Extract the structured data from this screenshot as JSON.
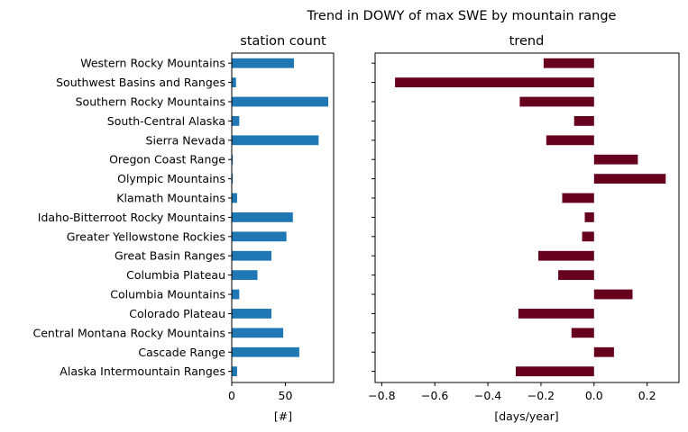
{
  "figure": {
    "suptitle": "Trend in DOWY of max SWE by mountain range"
  },
  "chart_data": [
    {
      "type": "bar",
      "orientation": "horizontal",
      "title": "station count",
      "xlabel": "[#]",
      "ylabel": "",
      "color": "#1f77b4",
      "xlim": [
        0,
        95
      ],
      "xticks": [
        0,
        50
      ],
      "grid": false,
      "categories": [
        "Western Rocky Mountains",
        "Southwest Basins and Ranges",
        "Southern Rocky Mountains",
        "South-Central Alaska",
        "Sierra Nevada",
        "Oregon Coast Range",
        "Olympic Mountains",
        "Klamath Mountains",
        "Idaho-Bitterroot Rocky Mountains",
        "Greater Yellowstone Rockies",
        "Great Basin Ranges",
        "Columbia Plateau",
        "Columbia Mountains",
        "Colorado Plateau",
        "Central Montana Rocky Mountains",
        "Cascade Range",
        "Alaska Intermountain Ranges"
      ],
      "values": [
        58,
        4,
        90,
        7,
        81,
        1,
        1,
        5,
        57,
        51,
        37,
        24,
        7,
        37,
        48,
        63,
        5
      ]
    },
    {
      "type": "bar",
      "orientation": "horizontal",
      "title": "trend",
      "xlabel": "[days/year]",
      "ylabel": "",
      "color": "#67001f",
      "xlim": [
        -0.825,
        0.32
      ],
      "xticks": [
        -0.8,
        -0.6,
        -0.4,
        -0.2,
        0.0,
        0.2
      ],
      "xticklabels": [
        "−0.8",
        "−0.6",
        "−0.4",
        "−0.2",
        "0.0",
        "0.2"
      ],
      "grid": false,
      "categories": [
        "Western Rocky Mountains",
        "Southwest Basins and Ranges",
        "Southern Rocky Mountains",
        "South-Central Alaska",
        "Sierra Nevada",
        "Oregon Coast Range",
        "Olympic Mountains",
        "Klamath Mountains",
        "Idaho-Bitterroot Rocky Mountains",
        "Greater Yellowstone Rockies",
        "Great Basin Ranges",
        "Columbia Plateau",
        "Columbia Mountains",
        "Colorado Plateau",
        "Central Montana Rocky Mountains",
        "Cascade Range",
        "Alaska Intermountain Ranges"
      ],
      "values": [
        -0.19,
        -0.75,
        -0.28,
        -0.075,
        -0.18,
        0.165,
        0.27,
        -0.12,
        -0.035,
        -0.045,
        -0.21,
        -0.135,
        0.145,
        -0.285,
        -0.085,
        0.075,
        -0.295
      ]
    }
  ]
}
